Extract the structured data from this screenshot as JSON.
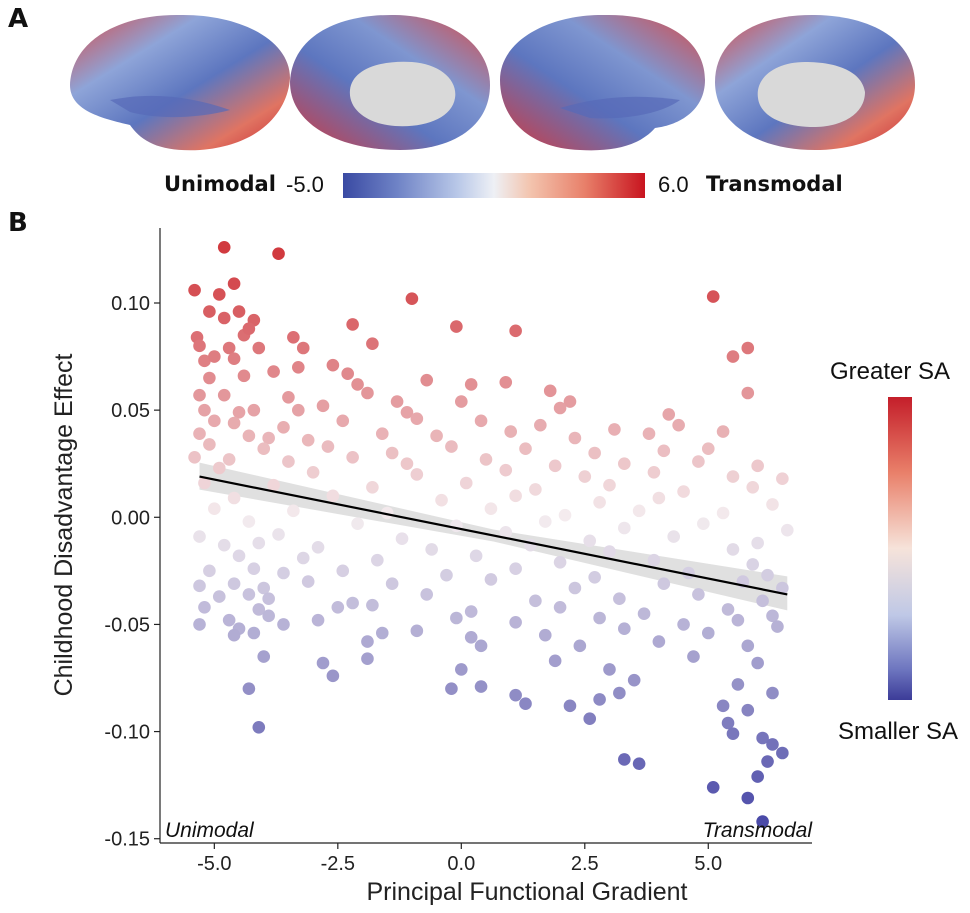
{
  "panels": {
    "a": "A",
    "b": "B"
  },
  "colorbar": {
    "left_label": "Unimodal",
    "min_label": "-5.0",
    "max_label": "6.0",
    "right_label": "Transmodal"
  },
  "legend": {
    "top_label": "Greater SA",
    "bottom_label": "Smaller SA"
  },
  "corner_labels": {
    "left": "Unimodal",
    "right": "Transmodal"
  },
  "colors": {
    "high": "#d13a3f",
    "mid": "#f4ecef",
    "low": "#4a4aa8",
    "fit_line": "#000000",
    "ci_band": "#cccccc"
  },
  "chart_data": {
    "type": "scatter",
    "xlabel": "Principal Functional Gradient",
    "ylabel": "Childhood Disadvantage Effect",
    "xlim": [
      -6.1,
      7.1
    ],
    "ylim": [
      -0.152,
      0.135
    ],
    "xticks": [
      "-5.0",
      "-2.5",
      "0.0",
      "2.5",
      "5.0"
    ],
    "xtick_values": [
      -5.0,
      -2.5,
      0.0,
      2.5,
      5.0
    ],
    "yticks": [
      "0.10",
      "0.05",
      "0.00",
      "-0.05",
      "-0.10",
      "-0.15"
    ],
    "ytick_values": [
      0.1,
      0.05,
      0.0,
      -0.05,
      -0.1,
      -0.15
    ],
    "grid": false,
    "fit_line": {
      "x": [
        -5.3,
        6.6
      ],
      "y": [
        0.019,
        -0.036
      ]
    },
    "points": [
      [
        -4.8,
        0.126
      ],
      [
        -3.7,
        0.123
      ],
      [
        -4.6,
        0.109
      ],
      [
        -5.4,
        0.106
      ],
      [
        -4.9,
        0.104
      ],
      [
        -1.0,
        0.102
      ],
      [
        5.1,
        0.103
      ],
      [
        -5.1,
        0.096
      ],
      [
        -4.5,
        0.096
      ],
      [
        -4.8,
        0.093
      ],
      [
        -4.2,
        0.092
      ],
      [
        -2.2,
        0.09
      ],
      [
        -0.1,
        0.089
      ],
      [
        1.1,
        0.087
      ],
      [
        -5.35,
        0.084
      ],
      [
        -5.3,
        0.08
      ],
      [
        -4.7,
        0.079
      ],
      [
        -4.4,
        0.085
      ],
      [
        -4.1,
        0.079
      ],
      [
        -3.4,
        0.084
      ],
      [
        -1.8,
        0.081
      ],
      [
        -4.3,
        0.088
      ],
      [
        -4.6,
        0.074
      ],
      [
        -5.2,
        0.073
      ],
      [
        -5.0,
        0.075
      ],
      [
        -3.2,
        0.079
      ],
      [
        5.5,
        0.075
      ],
      [
        5.8,
        0.079
      ],
      [
        -5.1,
        0.065
      ],
      [
        -4.4,
        0.066
      ],
      [
        -3.3,
        0.07
      ],
      [
        -2.6,
        0.071
      ],
      [
        -2.3,
        0.067
      ],
      [
        -0.7,
        0.064
      ],
      [
        0.9,
        0.063
      ],
      [
        -3.8,
        0.068
      ],
      [
        -1.9,
        0.058
      ],
      [
        -2.1,
        0.062
      ],
      [
        1.8,
        0.059
      ],
      [
        5.8,
        0.058
      ],
      [
        -5.3,
        0.057
      ],
      [
        -4.8,
        0.057
      ],
      [
        -3.5,
        0.056
      ],
      [
        -1.3,
        0.054
      ],
      [
        0.0,
        0.054
      ],
      [
        -5.2,
        0.05
      ],
      [
        -4.5,
        0.049
      ],
      [
        -4.2,
        0.05
      ],
      [
        -2.8,
        0.052
      ],
      [
        2.2,
        0.054
      ],
      [
        0.2,
        0.062
      ],
      [
        -3.3,
        0.05
      ],
      [
        4.2,
        0.048
      ],
      [
        -1.1,
        0.049
      ],
      [
        2.0,
        0.051
      ],
      [
        -5.0,
        0.045
      ],
      [
        -4.6,
        0.044
      ],
      [
        -3.6,
        0.042
      ],
      [
        -2.4,
        0.045
      ],
      [
        -0.9,
        0.046
      ],
      [
        0.4,
        0.045
      ],
      [
        1.6,
        0.043
      ],
      [
        3.1,
        0.041
      ],
      [
        4.4,
        0.043
      ],
      [
        -5.3,
        0.039
      ],
      [
        -4.3,
        0.038
      ],
      [
        -3.9,
        0.037
      ],
      [
        -3.1,
        0.036
      ],
      [
        -1.6,
        0.039
      ],
      [
        -0.5,
        0.038
      ],
      [
        1.0,
        0.04
      ],
      [
        2.3,
        0.037
      ],
      [
        3.8,
        0.039
      ],
      [
        5.3,
        0.04
      ],
      [
        -5.1,
        0.034
      ],
      [
        -4.0,
        0.032
      ],
      [
        -2.7,
        0.033
      ],
      [
        -1.4,
        0.03
      ],
      [
        -0.2,
        0.033
      ],
      [
        1.3,
        0.032
      ],
      [
        2.7,
        0.03
      ],
      [
        4.1,
        0.031
      ],
      [
        5.0,
        0.032
      ],
      [
        -5.4,
        0.028
      ],
      [
        -4.7,
        0.027
      ],
      [
        -3.5,
        0.026
      ],
      [
        -2.2,
        0.028
      ],
      [
        -1.1,
        0.025
      ],
      [
        0.5,
        0.027
      ],
      [
        1.9,
        0.024
      ],
      [
        3.3,
        0.025
      ],
      [
        4.8,
        0.026
      ],
      [
        6.0,
        0.024
      ],
      [
        -4.9,
        0.023
      ],
      [
        -3.0,
        0.021
      ],
      [
        -0.9,
        0.02
      ],
      [
        0.9,
        0.022
      ],
      [
        2.5,
        0.019
      ],
      [
        3.9,
        0.021
      ],
      [
        5.5,
        0.019
      ],
      [
        6.5,
        0.018
      ],
      [
        -5.2,
        0.016
      ],
      [
        -3.8,
        0.015
      ],
      [
        -1.8,
        0.014
      ],
      [
        0.1,
        0.016
      ],
      [
        1.5,
        0.013
      ],
      [
        3.0,
        0.015
      ],
      [
        4.5,
        0.012
      ],
      [
        5.9,
        0.014
      ],
      [
        -4.6,
        0.009
      ],
      [
        -2.6,
        0.01
      ],
      [
        -0.4,
        0.008
      ],
      [
        1.1,
        0.01
      ],
      [
        2.8,
        0.007
      ],
      [
        4.0,
        0.009
      ],
      [
        6.3,
        0.006
      ],
      [
        -5.0,
        0.004
      ],
      [
        -3.4,
        0.003
      ],
      [
        -1.5,
        0.002
      ],
      [
        0.6,
        0.004
      ],
      [
        2.1,
        0.001
      ],
      [
        3.6,
        0.003
      ],
      [
        5.3,
        0.002
      ],
      [
        -4.3,
        -0.002
      ],
      [
        -2.1,
        -0.003
      ],
      [
        -0.1,
        -0.004
      ],
      [
        1.7,
        -0.002
      ],
      [
        3.3,
        -0.005
      ],
      [
        4.9,
        -0.003
      ],
      [
        6.6,
        -0.006
      ],
      [
        -5.3,
        -0.009
      ],
      [
        -3.7,
        -0.008
      ],
      [
        -1.2,
        -0.01
      ],
      [
        0.9,
        -0.007
      ],
      [
        2.6,
        -0.011
      ],
      [
        4.3,
        -0.009
      ],
      [
        6.0,
        -0.012
      ],
      [
        -4.8,
        -0.013
      ],
      [
        -4.1,
        -0.012
      ],
      [
        -2.9,
        -0.014
      ],
      [
        -0.6,
        -0.015
      ],
      [
        1.4,
        -0.013
      ],
      [
        3.0,
        -0.016
      ],
      [
        5.5,
        -0.015
      ],
      [
        -4.5,
        -0.018
      ],
      [
        -3.2,
        -0.019
      ],
      [
        -1.7,
        -0.02
      ],
      [
        0.3,
        -0.018
      ],
      [
        2.0,
        -0.021
      ],
      [
        3.9,
        -0.02
      ],
      [
        5.9,
        -0.022
      ],
      [
        -5.1,
        -0.025
      ],
      [
        -4.2,
        -0.024
      ],
      [
        -3.6,
        -0.026
      ],
      [
        -2.4,
        -0.025
      ],
      [
        -0.3,
        -0.027
      ],
      [
        1.1,
        -0.024
      ],
      [
        2.7,
        -0.028
      ],
      [
        4.6,
        -0.026
      ],
      [
        6.2,
        -0.027
      ],
      [
        -5.3,
        -0.032
      ],
      [
        -4.6,
        -0.031
      ],
      [
        -4.0,
        -0.033
      ],
      [
        -3.1,
        -0.03
      ],
      [
        -1.4,
        -0.031
      ],
      [
        0.6,
        -0.029
      ],
      [
        2.3,
        -0.033
      ],
      [
        4.1,
        -0.031
      ],
      [
        5.7,
        -0.03
      ],
      [
        6.5,
        -0.033
      ],
      [
        -4.9,
        -0.037
      ],
      [
        -4.3,
        -0.036
      ],
      [
        -3.9,
        -0.038
      ],
      [
        -2.2,
        -0.04
      ],
      [
        -0.7,
        -0.036
      ],
      [
        1.5,
        -0.039
      ],
      [
        3.2,
        -0.038
      ],
      [
        4.8,
        -0.036
      ],
      [
        6.1,
        -0.039
      ],
      [
        -5.2,
        -0.042
      ],
      [
        -4.1,
        -0.043
      ],
      [
        -2.5,
        -0.042
      ],
      [
        -1.8,
        -0.041
      ],
      [
        0.2,
        -0.044
      ],
      [
        2.0,
        -0.042
      ],
      [
        3.7,
        -0.045
      ],
      [
        5.4,
        -0.043
      ],
      [
        6.3,
        -0.046
      ],
      [
        -4.7,
        -0.048
      ],
      [
        -3.9,
        -0.046
      ],
      [
        -2.9,
        -0.048
      ],
      [
        -0.1,
        -0.047
      ],
      [
        1.1,
        -0.049
      ],
      [
        2.8,
        -0.047
      ],
      [
        4.5,
        -0.05
      ],
      [
        5.6,
        -0.048
      ],
      [
        -5.3,
        -0.05
      ],
      [
        -4.5,
        -0.052
      ],
      [
        -3.6,
        -0.05
      ],
      [
        -1.6,
        -0.054
      ],
      [
        -0.9,
        -0.053
      ],
      [
        0.2,
        -0.056
      ],
      [
        1.7,
        -0.055
      ],
      [
        3.3,
        -0.052
      ],
      [
        5.0,
        -0.054
      ],
      [
        6.4,
        -0.051
      ],
      [
        -4.6,
        -0.055
      ],
      [
        -4.2,
        -0.054
      ],
      [
        -1.9,
        -0.058
      ],
      [
        0.4,
        -0.06
      ],
      [
        2.4,
        -0.06
      ],
      [
        4.0,
        -0.058
      ],
      [
        5.8,
        -0.06
      ],
      [
        -2.8,
        -0.068
      ],
      [
        -1.9,
        -0.066
      ],
      [
        0.0,
        -0.071
      ],
      [
        1.9,
        -0.067
      ],
      [
        3.0,
        -0.071
      ],
      [
        4.7,
        -0.065
      ],
      [
        6.0,
        -0.068
      ],
      [
        -4.0,
        -0.065
      ],
      [
        -2.6,
        -0.074
      ],
      [
        -0.2,
        -0.08
      ],
      [
        0.4,
        -0.079
      ],
      [
        1.1,
        -0.083
      ],
      [
        2.8,
        -0.085
      ],
      [
        3.5,
        -0.076
      ],
      [
        5.6,
        -0.078
      ],
      [
        6.3,
        -0.082
      ],
      [
        -4.3,
        -0.08
      ],
      [
        1.3,
        -0.087
      ],
      [
        2.2,
        -0.088
      ],
      [
        3.2,
        -0.082
      ],
      [
        5.3,
        -0.088
      ],
      [
        5.8,
        -0.09
      ],
      [
        -4.1,
        -0.098
      ],
      [
        2.6,
        -0.094
      ],
      [
        5.4,
        -0.096
      ],
      [
        5.5,
        -0.101
      ],
      [
        6.1,
        -0.103
      ],
      [
        3.3,
        -0.113
      ],
      [
        3.6,
        -0.115
      ],
      [
        6.2,
        -0.114
      ],
      [
        6.5,
        -0.11
      ],
      [
        5.1,
        -0.126
      ],
      [
        6.0,
        -0.121
      ],
      [
        5.8,
        -0.131
      ],
      [
        6.1,
        -0.142
      ],
      [
        6.3,
        -0.106
      ]
    ]
  }
}
